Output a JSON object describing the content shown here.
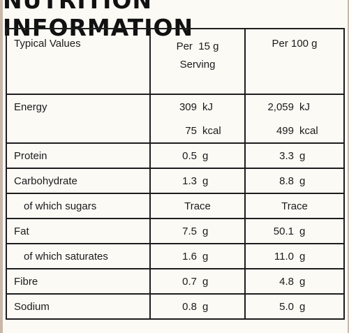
{
  "title": "NUTRITION INFORMATION",
  "header": {
    "label": "Typical Values",
    "col1_line1": "Per  15 g",
    "col1_line2": "Serving",
    "col2": "Per 100 g"
  },
  "rows": [
    {
      "label": "Energy",
      "v1": "309",
      "u1": "kJ",
      "v2": "2,059",
      "u2": "kJ"
    },
    {
      "label": "",
      "v1": "75",
      "u1": "kcal",
      "v2": "499",
      "u2": "kcal"
    },
    {
      "label": "Protein",
      "v1": "0.5",
      "u1": "g",
      "v2": "3.3",
      "u2": "g"
    },
    {
      "label": "Carbohydrate",
      "v1": "1.3",
      "u1": "g",
      "v2": "8.8",
      "u2": "g"
    },
    {
      "label": "of which sugars",
      "v1": "Trace",
      "v2": "Trace"
    },
    {
      "label": "Fat",
      "v1": "7.5",
      "u1": "g",
      "v2": "50.1",
      "u2": "g"
    },
    {
      "label": "of which saturates",
      "v1": "1.6",
      "u1": "g",
      "v2": "11.0",
      "u2": "g"
    },
    {
      "label": "Fibre",
      "v1": "0.7",
      "u1": "g",
      "v2": "4.8",
      "u2": "g"
    },
    {
      "label": "Sodium",
      "v1": "0.8",
      "u1": "g",
      "v2": "5.0",
      "u2": "g"
    }
  ]
}
